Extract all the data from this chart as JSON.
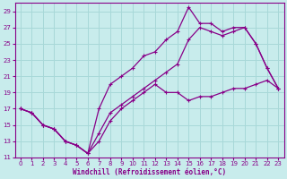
{
  "xlabel": "Windchill (Refroidissement éolien,°C)",
  "bg_color": "#c8ecec",
  "grid_color": "#a8d8d8",
  "line_color": "#880088",
  "xlim": [
    -0.5,
    23.5
  ],
  "ylim": [
    11,
    30
  ],
  "xticks": [
    0,
    1,
    2,
    3,
    4,
    5,
    6,
    7,
    8,
    9,
    10,
    11,
    12,
    13,
    14,
    15,
    16,
    17,
    18,
    19,
    20,
    21,
    22,
    23
  ],
  "yticks": [
    11,
    13,
    15,
    17,
    19,
    21,
    23,
    25,
    27,
    29
  ],
  "line1_x": [
    0,
    1,
    2,
    3,
    4,
    5,
    6,
    7,
    8,
    9,
    10,
    11,
    12,
    13,
    14,
    15,
    16,
    17,
    18,
    19,
    20,
    21,
    22,
    23
  ],
  "line1_y": [
    17.0,
    16.5,
    15.0,
    14.5,
    13.0,
    12.5,
    11.5,
    13.0,
    15.5,
    17.0,
    18.0,
    19.0,
    20.0,
    19.0,
    19.0,
    18.0,
    18.5,
    18.5,
    19.0,
    19.5,
    19.5,
    20.0,
    20.5,
    19.5
  ],
  "line2_x": [
    0,
    1,
    2,
    3,
    4,
    5,
    6,
    7,
    8,
    9,
    10,
    11,
    12,
    13,
    14,
    15,
    16,
    17,
    18,
    19,
    20,
    21,
    22,
    23
  ],
  "line2_y": [
    17.0,
    16.5,
    15.0,
    14.5,
    13.0,
    12.5,
    11.5,
    17.0,
    20.0,
    21.0,
    22.0,
    23.5,
    24.0,
    25.5,
    26.5,
    29.5,
    27.5,
    27.5,
    26.5,
    27.0,
    27.0,
    25.0,
    22.0,
    19.5
  ],
  "line3_x": [
    0,
    1,
    2,
    3,
    4,
    5,
    6,
    7,
    8,
    9,
    10,
    11,
    12,
    13,
    14,
    15,
    16,
    17,
    18,
    19,
    20,
    21,
    22,
    23
  ],
  "line3_y": [
    17.0,
    16.5,
    15.0,
    14.5,
    13.0,
    12.5,
    11.5,
    14.0,
    16.5,
    17.5,
    18.5,
    19.5,
    20.5,
    21.5,
    22.5,
    25.5,
    27.0,
    26.5,
    26.0,
    26.5,
    27.0,
    25.0,
    22.0,
    19.5
  ]
}
